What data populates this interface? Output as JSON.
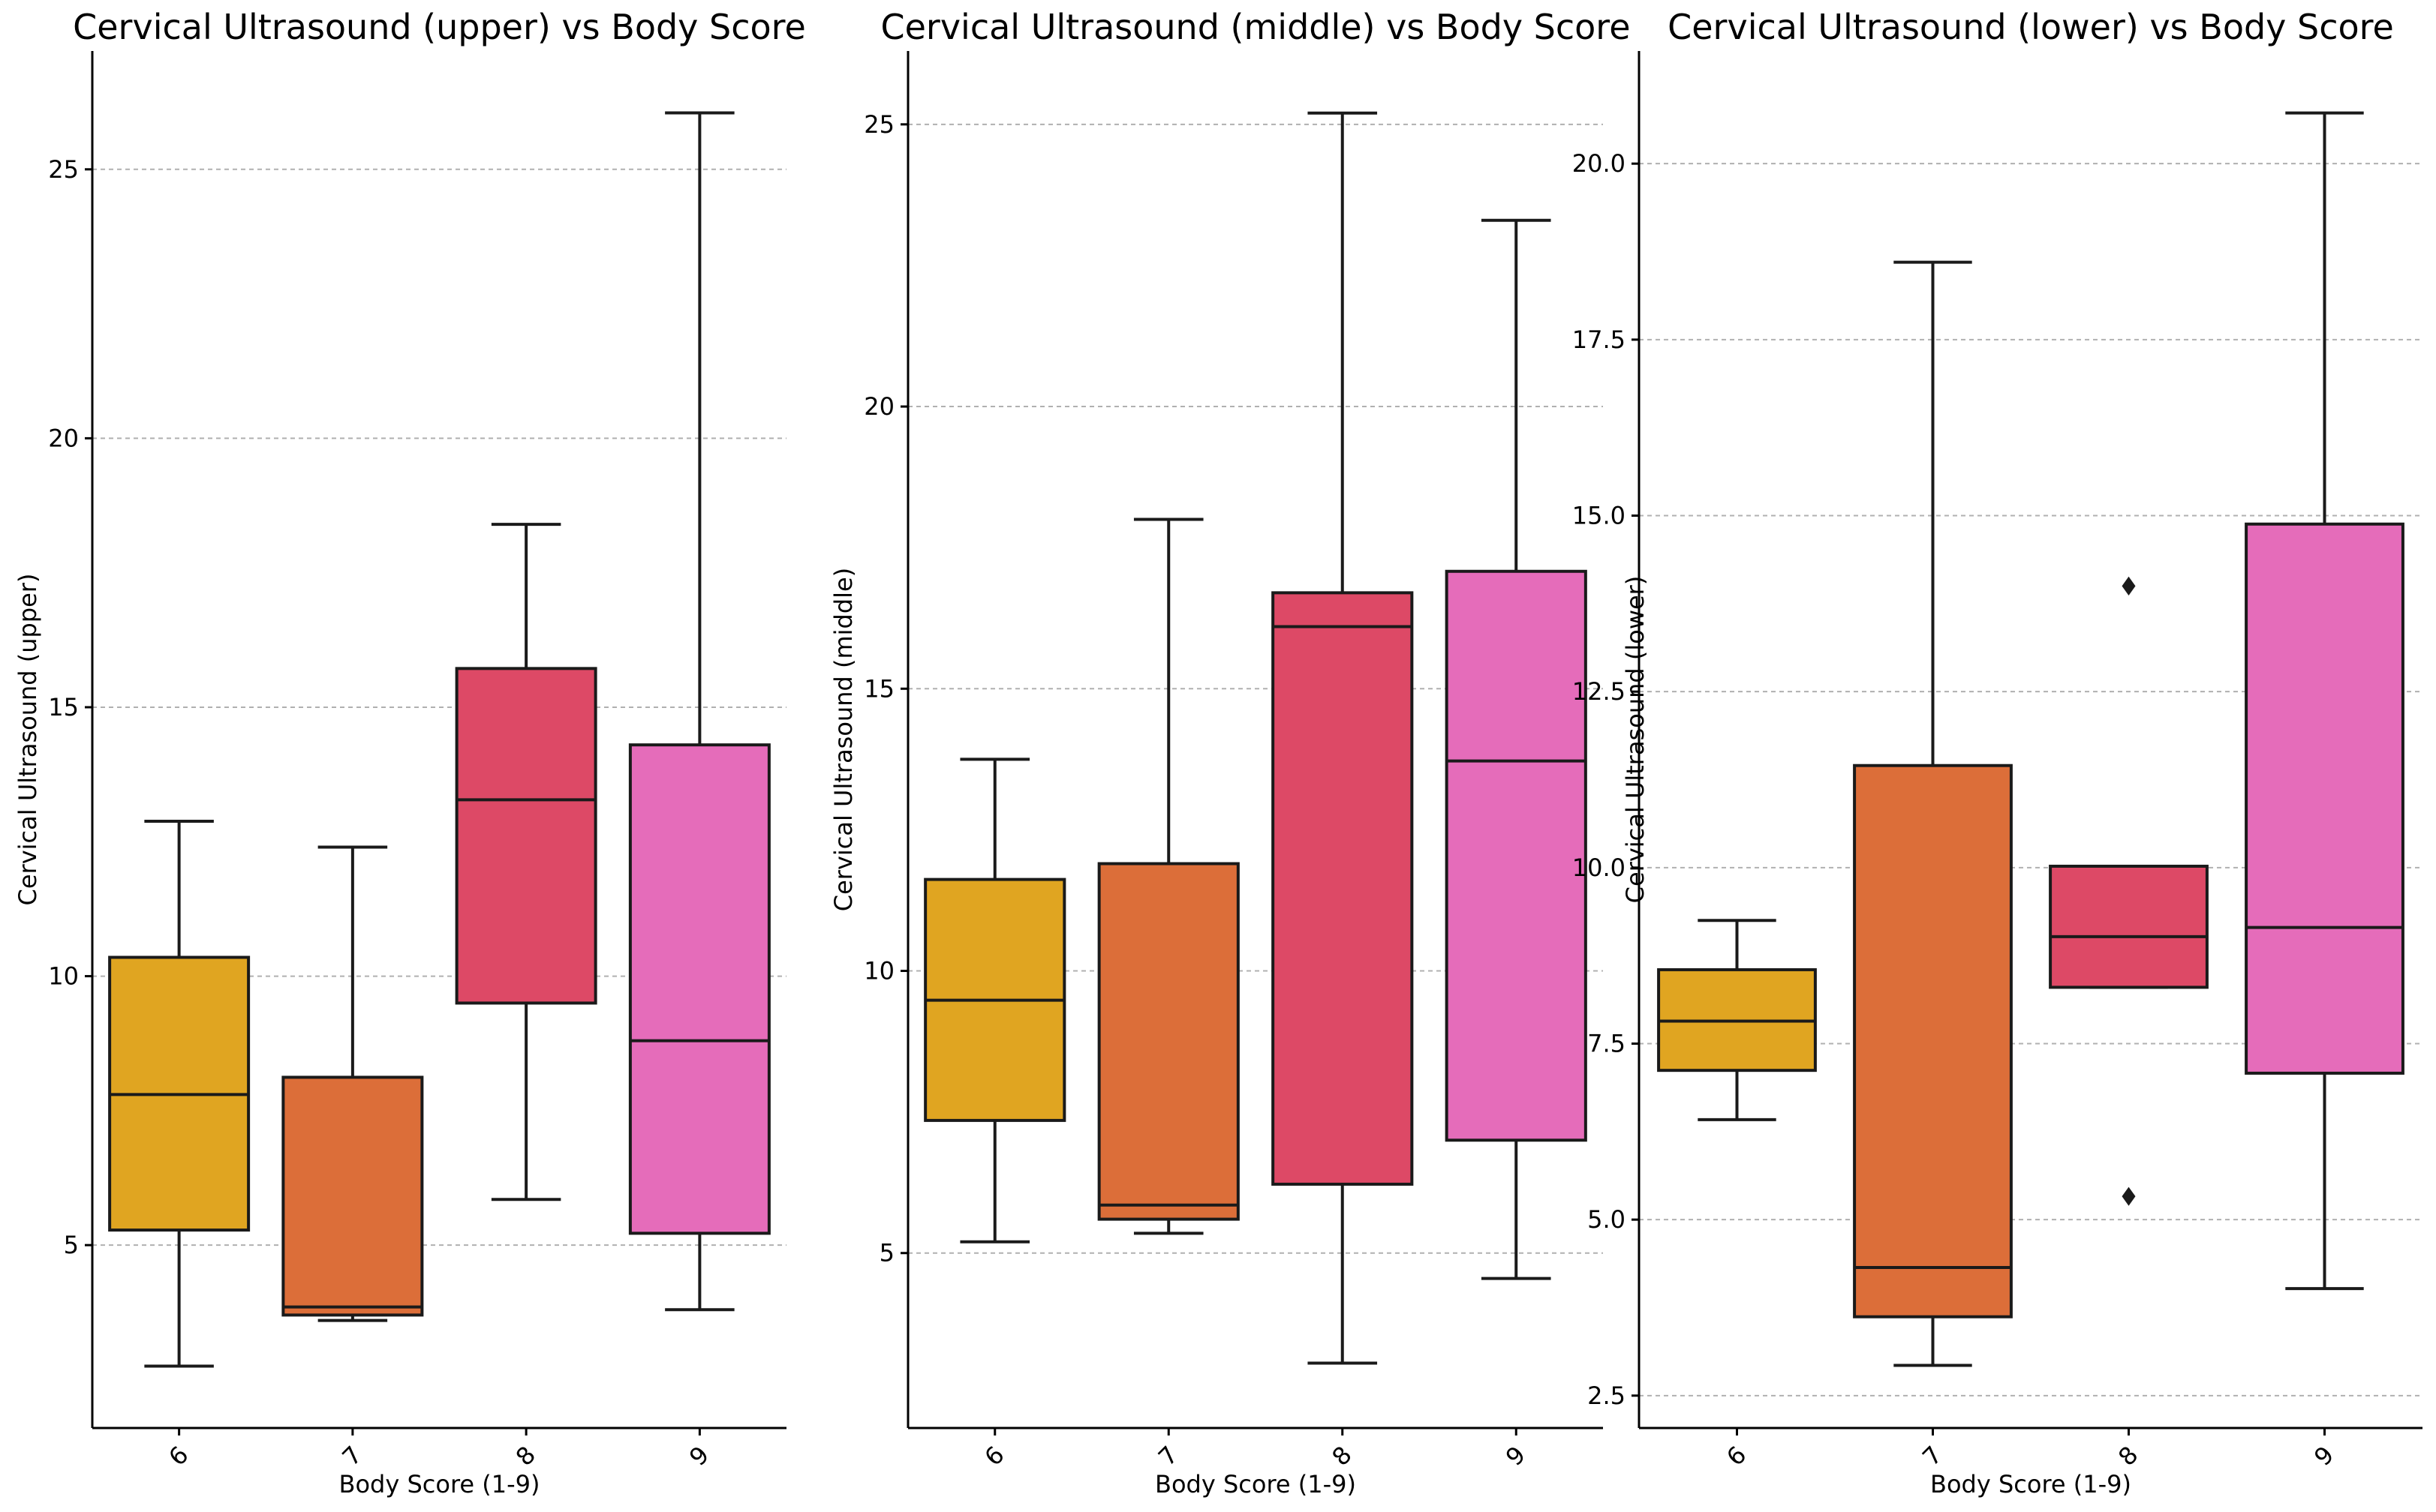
{
  "chart_data": [
    {
      "type": "box",
      "title": "Cervical Ultrasound (upper) vs Body Score",
      "xlabel": "Body Score (1-9)",
      "ylabel": "Cervical Ultrasound (upper)",
      "ylim": [
        1.6,
        27.2
      ],
      "yticks": [
        5,
        10,
        15,
        20,
        25
      ],
      "ytick_labels": [
        "5",
        "10",
        "15",
        "20",
        "25"
      ],
      "grid": true,
      "categories": [
        "6",
        "7",
        "8",
        "9"
      ],
      "colors": [
        "#e0a521",
        "#dc6e39",
        "#dd4966",
        "#e56cba"
      ],
      "boxes": [
        {
          "category": "6",
          "whislo": 2.75,
          "q1": 5.28,
          "med": 7.8,
          "q3": 10.35,
          "whishi": 12.88,
          "fliers": []
        },
        {
          "category": "7",
          "whislo": 3.6,
          "q1": 3.7,
          "med": 3.85,
          "q3": 8.12,
          "whishi": 12.4,
          "fliers": []
        },
        {
          "category": "8",
          "whislo": 5.85,
          "q1": 9.5,
          "med": 13.28,
          "q3": 15.72,
          "whishi": 18.4,
          "fliers": []
        },
        {
          "category": "9",
          "whislo": 3.8,
          "q1": 5.22,
          "med": 8.8,
          "q3": 14.3,
          "whishi": 26.05,
          "fliers": []
        }
      ]
    },
    {
      "type": "box",
      "title": "Cervical Ultrasound (middle) vs Body Score",
      "xlabel": "Body Score (1-9)",
      "ylabel": "Cervical Ultrasound (middle)",
      "ylim": [
        1.9,
        26.3
      ],
      "yticks": [
        5,
        10,
        15,
        20,
        25
      ],
      "ytick_labels": [
        "5",
        "10",
        "15",
        "20",
        "25"
      ],
      "grid": true,
      "categories": [
        "6",
        "7",
        "8",
        "9"
      ],
      "colors": [
        "#e0a521",
        "#dc6e39",
        "#dd4966",
        "#e56cba"
      ],
      "boxes": [
        {
          "category": "6",
          "whislo": 5.2,
          "q1": 7.35,
          "med": 9.48,
          "q3": 11.62,
          "whishi": 13.75,
          "fliers": []
        },
        {
          "category": "7",
          "whislo": 5.35,
          "q1": 5.6,
          "med": 5.85,
          "q3": 11.9,
          "whishi": 18.0,
          "fliers": []
        },
        {
          "category": "8",
          "whislo": 3.05,
          "q1": 6.22,
          "med": 16.1,
          "q3": 16.7,
          "whishi": 25.2,
          "fliers": []
        },
        {
          "category": "9",
          "whislo": 4.55,
          "q1": 7.0,
          "med": 13.72,
          "q3": 17.08,
          "whishi": 23.3,
          "fliers": []
        }
      ]
    },
    {
      "type": "box",
      "title": "Cervical Ultrasound (lower) vs Body Score",
      "xlabel": "Body Score (1-9)",
      "ylabel": "Cervical Ultrasound (lower)",
      "ylim": [
        2.04,
        21.6
      ],
      "yticks": [
        2.5,
        5.0,
        7.5,
        10.0,
        12.5,
        15.0,
        17.5,
        20.0
      ],
      "ytick_labels": [
        "2.5",
        "5.0",
        "7.5",
        "10.0",
        "12.5",
        "15.0",
        "17.5",
        "20.0"
      ],
      "grid": true,
      "categories": [
        "6",
        "7",
        "8",
        "9"
      ],
      "colors": [
        "#e0a521",
        "#dc6e39",
        "#dd4966",
        "#e56cba"
      ],
      "boxes": [
        {
          "category": "6",
          "whislo": 6.42,
          "q1": 7.12,
          "med": 7.82,
          "q3": 8.55,
          "whishi": 9.25,
          "fliers": []
        },
        {
          "category": "7",
          "whislo": 2.93,
          "q1": 3.62,
          "med": 4.32,
          "q3": 11.45,
          "whishi": 18.6,
          "fliers": []
        },
        {
          "category": "8",
          "whislo": 8.3,
          "q1": 8.3,
          "med": 9.02,
          "q3": 10.02,
          "whishi": 10.02,
          "fliers": [
            14.0,
            5.33
          ]
        },
        {
          "category": "9",
          "whislo": 4.02,
          "q1": 7.08,
          "med": 9.15,
          "q3": 14.88,
          "whishi": 20.72,
          "fliers": []
        }
      ]
    }
  ]
}
